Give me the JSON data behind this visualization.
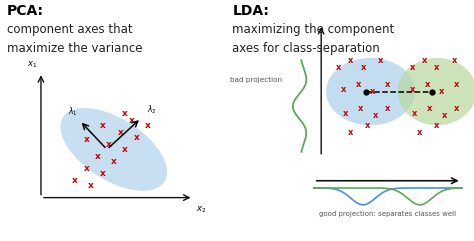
{
  "bg_color": "#ffffff",
  "pca_title": "PCA:",
  "pca_subtitle1": "component axes that",
  "pca_subtitle2": "maximize the variance",
  "lda_title": "LDA:",
  "lda_subtitle1": "maximizing the component",
  "lda_subtitle2": "axes for class-separation",
  "bad_proj_label": "bad projection",
  "good_proj_label": "good projection: separates classes well",
  "cross_color": "#cc0000",
  "ellipse_blue_color": "#aacfea",
  "ellipse_green_color": "#b8d8a0",
  "arrow_color_blue": "#4a90d9",
  "arrow_color_green": "#5aaa55",
  "axis_color": "#111111",
  "title_fontsize": 10,
  "subtitle_fontsize": 8.5,
  "label_fontsize": 6.5
}
